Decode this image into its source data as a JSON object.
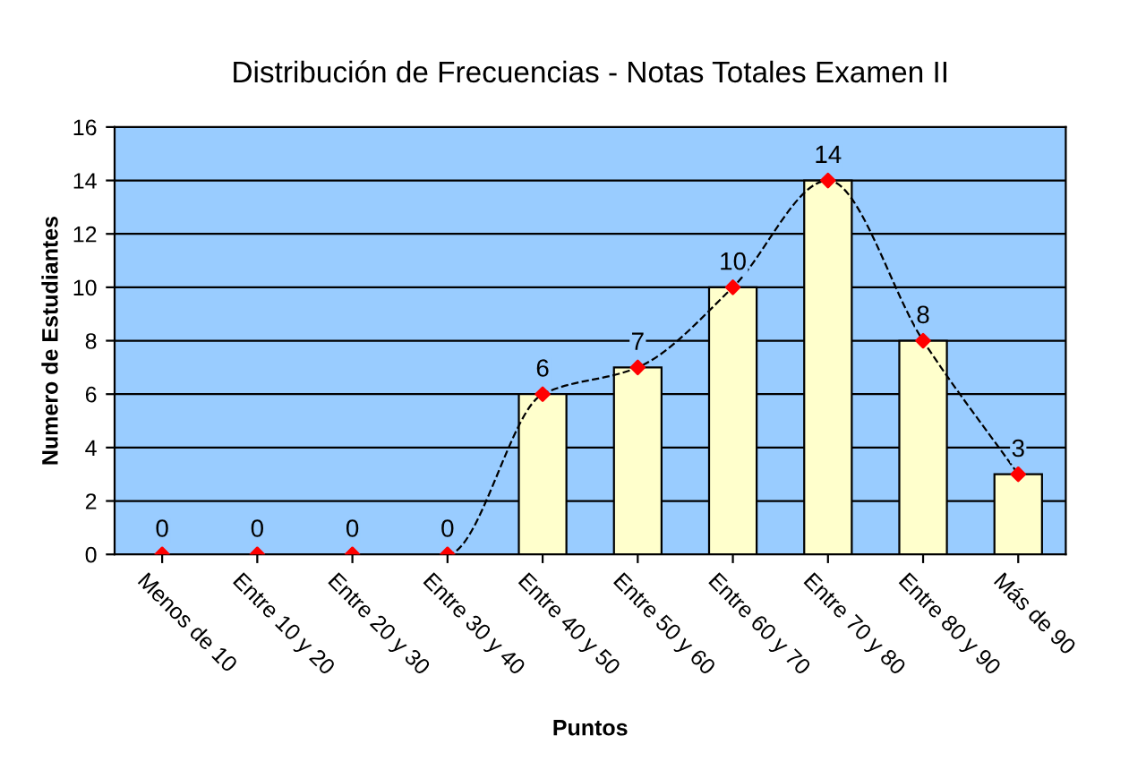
{
  "chart_data": {
    "type": "bar",
    "title": "Distribución de Frecuencias - Notas Totales Examen II",
    "xlabel": "Puntos",
    "ylabel": "Numero de Estudiantes",
    "categories": [
      "Menos de 10",
      "Entre 10 y 20",
      "Entre 20 y 30",
      "Entre 30 y 40",
      "Entre 40 y 50",
      "Entre 50 y 60",
      "Entre 60 y 70",
      "Entre 70 y 80",
      "Entre 80 y 90",
      "Más de 90"
    ],
    "series": [
      {
        "color": "#ffffcc",
        "values": [
          0,
          0,
          0,
          0,
          6,
          7,
          10,
          14,
          8,
          3
        ]
      },
      {
        "type": "line",
        "color": "#000000",
        "colors": [
          "#ff0000",
          "#ff0000",
          "#ff0000",
          "#ff0000",
          "#ff0000",
          "#ff0000",
          "#ff0000",
          "#ff0000",
          "#ff0000",
          "#ff0000"
        ],
        "marker": "diamond",
        "line_style": "dashed",
        "values": [
          0,
          0,
          0,
          0,
          6,
          7,
          10,
          14,
          8,
          3
        ],
        "value_labels": [
          "0",
          "0",
          "0",
          "0",
          "6",
          "7",
          "10",
          "14",
          "8",
          "3"
        ]
      }
    ],
    "ylim": [
      0,
      16
    ],
    "yticks": [
      0,
      2,
      4,
      6,
      8,
      10,
      12,
      14,
      16
    ],
    "grid": "y",
    "legend": false
  }
}
